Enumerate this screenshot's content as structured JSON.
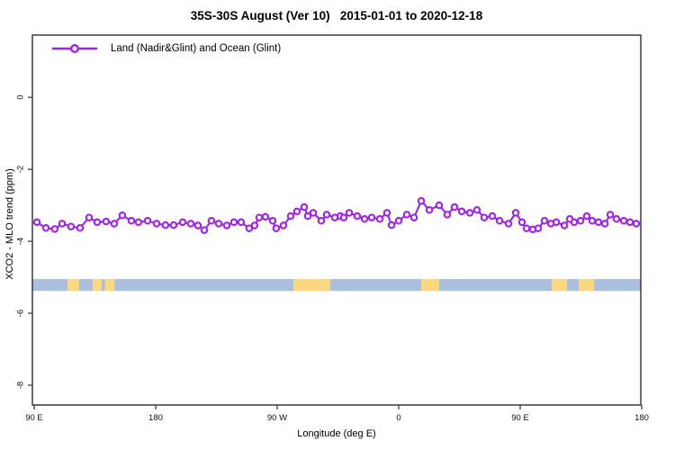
{
  "chart_data": {
    "type": "line",
    "title": "35S-30S August (Ver 10)   2015-01-01 to 2020-12-18",
    "xlabel": "Longitude (deg E)",
    "ylabel": "XCO2 - MLO trend (ppm)",
    "legend_position": "top-left",
    "grid": false,
    "xlim": [
      88.67,
      539.33
    ],
    "ylim": [
      -8.55,
      1.73
    ],
    "x_ticks": [
      {
        "x": 90,
        "label": "90 E"
      },
      {
        "x": 180,
        "label": "180"
      },
      {
        "x": 270,
        "label": "90 W"
      },
      {
        "x": 360,
        "label": "0"
      },
      {
        "x": 450,
        "label": "90 E"
      },
      {
        "x": 540,
        "label": "180"
      }
    ],
    "y_ticks": [
      {
        "y": 0,
        "label": "0"
      },
      {
        "y": -2,
        "label": "-2"
      },
      {
        "y": -4,
        "label": "-4"
      },
      {
        "y": -6,
        "label": "-6"
      },
      {
        "y": -8,
        "label": "-8"
      }
    ],
    "series": [
      {
        "name": "Land (Nadir&Glint) and Ocean (Glint)",
        "color": "#A020F0",
        "marker": "open-circle",
        "points": [
          [
            92.0,
            -3.47
          ],
          [
            98.7,
            -3.63
          ],
          [
            105.3,
            -3.66
          ],
          [
            110.7,
            -3.51
          ],
          [
            117.3,
            -3.59
          ],
          [
            124.0,
            -3.63
          ],
          [
            130.7,
            -3.34
          ],
          [
            136.7,
            -3.47
          ],
          [
            143.3,
            -3.45
          ],
          [
            149.3,
            -3.51
          ],
          [
            155.3,
            -3.28
          ],
          [
            162.0,
            -3.43
          ],
          [
            167.3,
            -3.47
          ],
          [
            174.0,
            -3.43
          ],
          [
            180.7,
            -3.51
          ],
          [
            187.3,
            -3.55
          ],
          [
            193.3,
            -3.55
          ],
          [
            200.0,
            -3.47
          ],
          [
            206.0,
            -3.51
          ],
          [
            211.3,
            -3.56
          ],
          [
            216.0,
            -3.69
          ],
          [
            221.3,
            -3.43
          ],
          [
            226.7,
            -3.51
          ],
          [
            232.7,
            -3.56
          ],
          [
            238.0,
            -3.47
          ],
          [
            243.3,
            -3.47
          ],
          [
            249.3,
            -3.64
          ],
          [
            253.3,
            -3.56
          ],
          [
            256.7,
            -3.34
          ],
          [
            261.3,
            -3.32
          ],
          [
            266.7,
            -3.43
          ],
          [
            269.3,
            -3.64
          ],
          [
            274.7,
            -3.56
          ],
          [
            280.0,
            -3.3
          ],
          [
            284.7,
            -3.17
          ],
          [
            290.0,
            -3.05
          ],
          [
            292.7,
            -3.3
          ],
          [
            296.7,
            -3.21
          ],
          [
            302.7,
            -3.43
          ],
          [
            306.7,
            -3.26
          ],
          [
            312.7,
            -3.34
          ],
          [
            316.7,
            -3.3
          ],
          [
            319.3,
            -3.34
          ],
          [
            323.3,
            -3.21
          ],
          [
            329.3,
            -3.3
          ],
          [
            334.7,
            -3.38
          ],
          [
            340.0,
            -3.34
          ],
          [
            346.0,
            -3.38
          ],
          [
            351.3,
            -3.21
          ],
          [
            354.7,
            -3.55
          ],
          [
            360.0,
            -3.43
          ],
          [
            366.0,
            -3.26
          ],
          [
            371.3,
            -3.34
          ],
          [
            376.7,
            -2.88
          ],
          [
            382.7,
            -3.13
          ],
          [
            390.0,
            -3.0
          ],
          [
            396.0,
            -3.26
          ],
          [
            401.3,
            -3.05
          ],
          [
            406.7,
            -3.17
          ],
          [
            412.7,
            -3.21
          ],
          [
            418.0,
            -3.13
          ],
          [
            423.3,
            -3.34
          ],
          [
            429.3,
            -3.3
          ],
          [
            434.7,
            -3.43
          ],
          [
            441.3,
            -3.51
          ],
          [
            446.7,
            -3.21
          ],
          [
            451.3,
            -3.47
          ],
          [
            454.7,
            -3.64
          ],
          [
            459.3,
            -3.67
          ],
          [
            463.3,
            -3.64
          ],
          [
            468.0,
            -3.43
          ],
          [
            472.7,
            -3.51
          ],
          [
            476.7,
            -3.47
          ],
          [
            482.7,
            -3.56
          ],
          [
            486.7,
            -3.38
          ],
          [
            490.0,
            -3.47
          ],
          [
            494.7,
            -3.43
          ],
          [
            499.3,
            -3.3
          ],
          [
            503.3,
            -3.43
          ],
          [
            508.0,
            -3.47
          ],
          [
            512.7,
            -3.51
          ],
          [
            516.7,
            -3.26
          ],
          [
            521.3,
            -3.38
          ],
          [
            526.7,
            -3.43
          ],
          [
            531.3,
            -3.47
          ],
          [
            536.0,
            -3.51
          ]
        ]
      }
    ],
    "surface_band": {
      "y_top": -5.05,
      "y_bottom": -5.38,
      "colors": {
        "ocean": "#A9BFDD",
        "land": "#FBD87F"
      },
      "segments": [
        [
          "ocean",
          88.7,
          114.7
        ],
        [
          "land",
          114.7,
          123.3
        ],
        [
          "ocean",
          123.3,
          133.3
        ],
        [
          "land",
          133.3,
          140.0
        ],
        [
          "ocean",
          140.0,
          142.5
        ],
        [
          "land",
          142.5,
          149.5
        ],
        [
          "ocean",
          149.5,
          282.0
        ],
        [
          "land",
          282.0,
          309.3
        ],
        [
          "ocean",
          309.3,
          376.7
        ],
        [
          "land",
          376.7,
          390.0
        ],
        [
          "ocean",
          390.0,
          473.3
        ],
        [
          "land",
          473.3,
          484.7
        ],
        [
          "ocean",
          484.7,
          493.3
        ],
        [
          "land",
          493.3,
          504.7
        ],
        [
          "ocean",
          504.7,
          539.3
        ]
      ]
    }
  }
}
